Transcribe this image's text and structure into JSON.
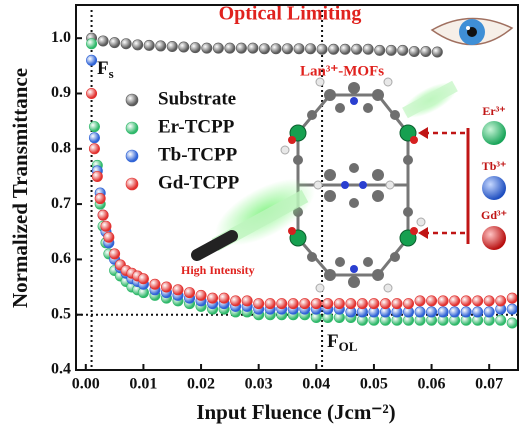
{
  "chart_data": {
    "type": "scatter",
    "title": "Optical Limiting",
    "x_label": "Input Fluence (Jcm⁻²)",
    "y_label": "Normalized Transmittance",
    "xlim": [
      -0.0017,
      0.075
    ],
    "ylim": [
      0.4,
      1.06
    ],
    "xticks": [
      {
        "value": 0,
        "label": "0.00"
      },
      {
        "value": 0.01,
        "label": "0.01"
      },
      {
        "value": 0.02,
        "label": "0.02"
      },
      {
        "value": 0.03,
        "label": "0.03"
      },
      {
        "value": 0.04,
        "label": "0.04"
      },
      {
        "value": 0.05,
        "label": "0.05"
      },
      {
        "value": 0.06,
        "label": "0.06"
      },
      {
        "value": 0.07,
        "label": "0.07"
      }
    ],
    "yticks": [
      0.4,
      0.5,
      0.6,
      0.7,
      0.8,
      0.9,
      {
        "value": 1,
        "label": "1.0"
      }
    ],
    "hlines": [
      0.5
    ],
    "vlines": [
      0.001,
      0.041
    ],
    "series": [
      {
        "name": "Substrate",
        "color": "#5a5a5a",
        "x": [
          0.001,
          0.003,
          0.005,
          0.007,
          0.009,
          0.011,
          0.013,
          0.015,
          0.017,
          0.019,
          0.021,
          0.023,
          0.025,
          0.027,
          0.029,
          0.031,
          0.033,
          0.035,
          0.037,
          0.039,
          0.041,
          0.043,
          0.045,
          0.047,
          0.049,
          0.051,
          0.053,
          0.055,
          0.057,
          0.059,
          0.061
        ],
        "values": [
          1.0,
          0.995,
          0.992,
          0.99,
          0.988,
          0.987,
          0.986,
          0.985,
          0.984,
          0.983,
          0.982,
          0.982,
          0.982,
          0.982,
          0.982,
          0.981,
          0.981,
          0.981,
          0.981,
          0.981,
          0.98,
          0.98,
          0.98,
          0.98,
          0.98,
          0.978,
          0.978,
          0.978,
          0.976,
          0.976,
          0.975
        ]
      },
      {
        "name": "Er-TCPP",
        "color": "#2fb86a",
        "x": [
          0.001,
          0.0015,
          0.002,
          0.0025,
          0.003,
          0.0035,
          0.004,
          0.005,
          0.006,
          0.007,
          0.008,
          0.009,
          0.01,
          0.012,
          0.014,
          0.016,
          0.018,
          0.02,
          0.022,
          0.024,
          0.026,
          0.028,
          0.03,
          0.032,
          0.034,
          0.036,
          0.038,
          0.04,
          0.042,
          0.044,
          0.046,
          0.048,
          0.05,
          0.052,
          0.054,
          0.056,
          0.058,
          0.06,
          0.062,
          0.064,
          0.066,
          0.068,
          0.07,
          0.072,
          0.074
        ],
        "values": [
          0.99,
          0.84,
          0.77,
          0.7,
          0.66,
          0.63,
          0.61,
          0.58,
          0.57,
          0.56,
          0.55,
          0.545,
          0.54,
          0.535,
          0.53,
          0.525,
          0.52,
          0.515,
          0.51,
          0.51,
          0.505,
          0.505,
          0.5,
          0.5,
          0.5,
          0.5,
          0.5,
          0.495,
          0.495,
          0.495,
          0.495,
          0.49,
          0.49,
          0.49,
          0.49,
          0.49,
          0.49,
          0.49,
          0.49,
          0.49,
          0.49,
          0.49,
          0.49,
          0.49,
          0.485
        ]
      },
      {
        "name": "Tb-TCPP",
        "color": "#2f63d6",
        "x": [
          0.001,
          0.0015,
          0.002,
          0.0025,
          0.003,
          0.0035,
          0.004,
          0.005,
          0.006,
          0.007,
          0.008,
          0.009,
          0.01,
          0.012,
          0.014,
          0.016,
          0.018,
          0.02,
          0.022,
          0.024,
          0.026,
          0.028,
          0.03,
          0.032,
          0.034,
          0.036,
          0.038,
          0.04,
          0.042,
          0.044,
          0.046,
          0.048,
          0.05,
          0.052,
          0.054,
          0.056,
          0.058,
          0.06,
          0.062,
          0.064,
          0.066,
          0.068,
          0.07,
          0.072,
          0.074
        ],
        "values": [
          0.96,
          0.82,
          0.76,
          0.72,
          0.68,
          0.65,
          0.63,
          0.6,
          0.585,
          0.575,
          0.565,
          0.56,
          0.555,
          0.545,
          0.54,
          0.535,
          0.53,
          0.525,
          0.52,
          0.52,
          0.515,
          0.515,
          0.51,
          0.51,
          0.51,
          0.51,
          0.51,
          0.51,
          0.51,
          0.51,
          0.505,
          0.505,
          0.505,
          0.505,
          0.505,
          0.505,
          0.505,
          0.505,
          0.505,
          0.505,
          0.505,
          0.505,
          0.505,
          0.51,
          0.51
        ]
      },
      {
        "name": "Gd-TCPP",
        "color": "#e2312f",
        "x": [
          0.001,
          0.0015,
          0.002,
          0.0025,
          0.003,
          0.0035,
          0.004,
          0.005,
          0.006,
          0.007,
          0.008,
          0.009,
          0.01,
          0.012,
          0.014,
          0.016,
          0.018,
          0.02,
          0.022,
          0.024,
          0.026,
          0.028,
          0.03,
          0.032,
          0.034,
          0.036,
          0.038,
          0.04,
          0.042,
          0.044,
          0.046,
          0.048,
          0.05,
          0.052,
          0.054,
          0.056,
          0.058,
          0.06,
          0.062,
          0.064,
          0.066,
          0.068,
          0.07,
          0.072,
          0.074
        ],
        "values": [
          0.9,
          0.8,
          0.75,
          0.71,
          0.68,
          0.66,
          0.64,
          0.61,
          0.59,
          0.58,
          0.575,
          0.57,
          0.565,
          0.555,
          0.55,
          0.545,
          0.54,
          0.535,
          0.53,
          0.53,
          0.525,
          0.525,
          0.52,
          0.52,
          0.52,
          0.52,
          0.52,
          0.52,
          0.52,
          0.52,
          0.52,
          0.52,
          0.52,
          0.52,
          0.52,
          0.52,
          0.525,
          0.525,
          0.525,
          0.525,
          0.525,
          0.525,
          0.525,
          0.525,
          0.53
        ]
      }
    ],
    "annotations": {
      "fs": {
        "text": "F",
        "sub": "s"
      },
      "fol": {
        "text": "F",
        "sub": "OL"
      },
      "mof": "Lan³⁺-MOFs",
      "laser": "High Intensity",
      "ions": [
        "Er³⁺",
        "Tb³⁺",
        "Gd³⁺"
      ]
    }
  }
}
